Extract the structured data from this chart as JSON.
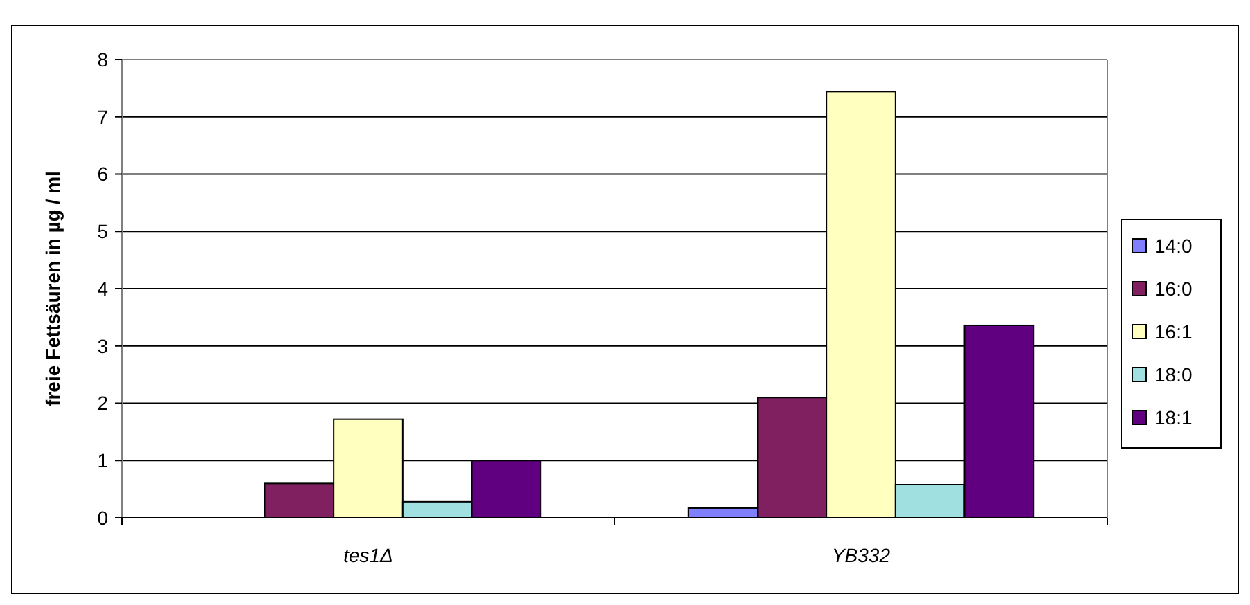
{
  "chart_data": {
    "type": "bar",
    "ylabel": "freie Fettsäuren in µg / ml",
    "categories": [
      "tes1Δ",
      "YB332"
    ],
    "series": [
      {
        "name": "14:0",
        "color": "#8080ff",
        "values": [
          0,
          0.17
        ]
      },
      {
        "name": "16:0",
        "color": "#802060",
        "values": [
          0.6,
          2.1
        ]
      },
      {
        "name": "16:1",
        "color": "#ffffc0",
        "values": [
          1.72,
          7.44
        ]
      },
      {
        "name": "18:0",
        "color": "#a0e0e0",
        "values": [
          0.28,
          0.58
        ]
      },
      {
        "name": "18:1",
        "color": "#600080",
        "values": [
          1.0,
          3.36
        ]
      }
    ],
    "ylim": [
      0,
      8
    ],
    "yticks": [
      0,
      1,
      2,
      3,
      4,
      5,
      6,
      7,
      8
    ],
    "grid": "y",
    "legend": "right"
  }
}
